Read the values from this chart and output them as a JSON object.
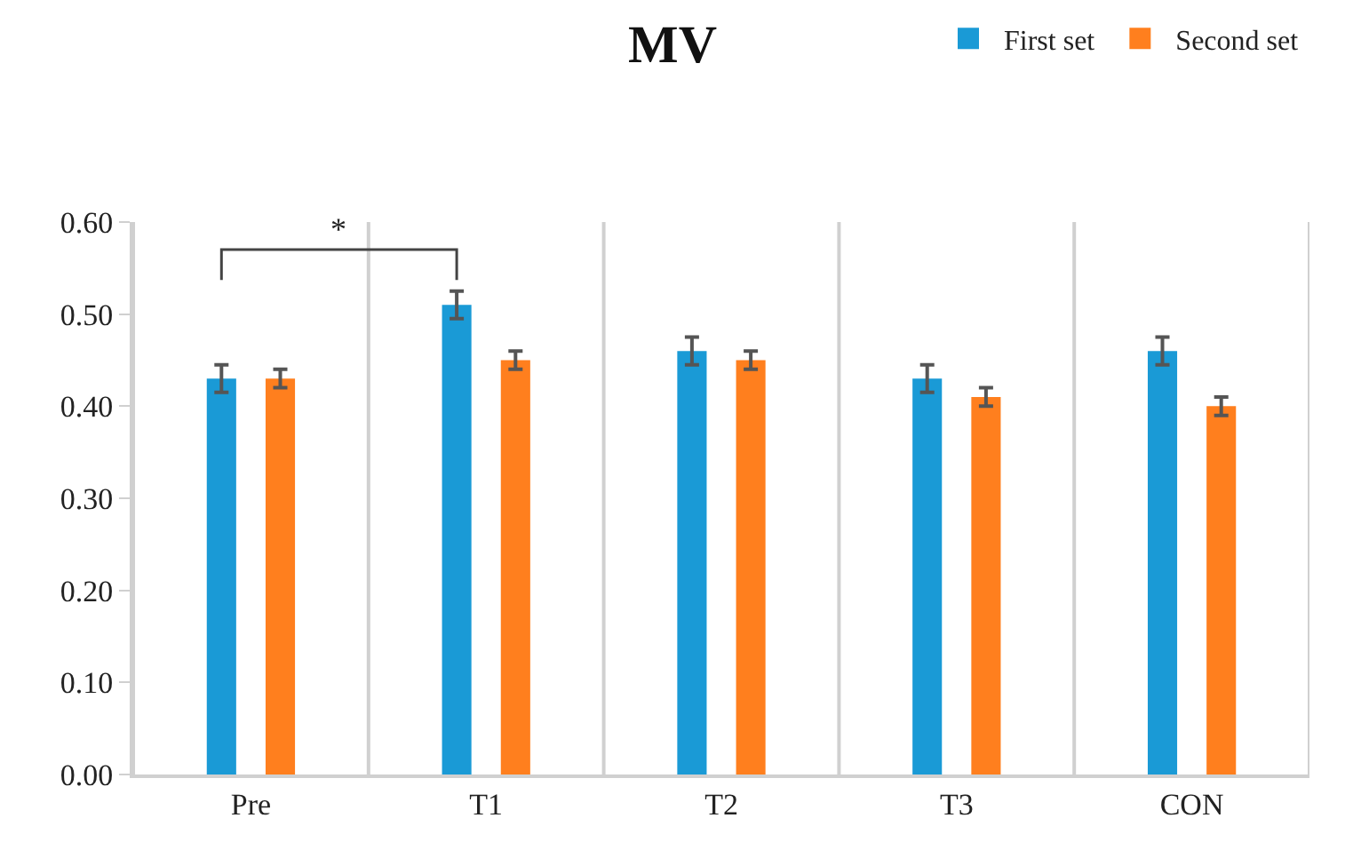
{
  "chart_data": {
    "type": "bar",
    "title": "MV",
    "categories": [
      "Pre",
      "T1",
      "T2",
      "T3",
      "CON"
    ],
    "series": [
      {
        "name": "First set",
        "color": "#1a9ad6",
        "values": [
          0.43,
          0.51,
          0.46,
          0.43,
          0.46
        ],
        "errors": [
          0.015,
          0.015,
          0.015,
          0.015,
          0.015
        ]
      },
      {
        "name": "Second set",
        "color": "#ff7f1e",
        "values": [
          0.43,
          0.45,
          0.45,
          0.41,
          0.4
        ],
        "errors": [
          0.01,
          0.01,
          0.01,
          0.01,
          0.01
        ]
      }
    ],
    "ylim": [
      0,
      0.6
    ],
    "yticks": [
      {
        "value": 0,
        "label": "0.00"
      },
      {
        "value": 0.1,
        "label": "0.10"
      },
      {
        "value": 0.2,
        "label": "0.20"
      },
      {
        "value": 0.3,
        "label": "0.30"
      },
      {
        "value": 0.4,
        "label": "0.40"
      },
      {
        "value": 0.5,
        "label": "0.50"
      },
      {
        "value": 0.6,
        "label": "0.60"
      }
    ],
    "grid": "x",
    "legend": "top right",
    "annotations": [
      "*"
    ]
  }
}
